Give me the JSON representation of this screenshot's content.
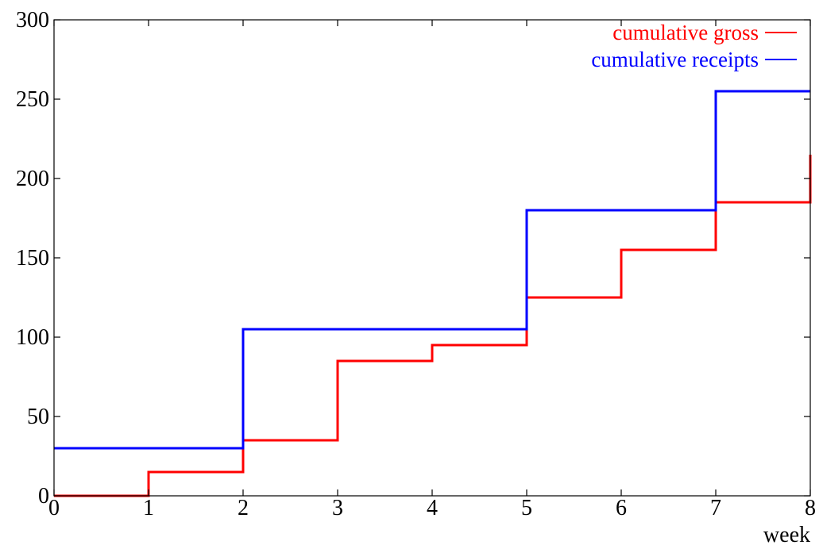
{
  "chart_data": {
    "type": "line",
    "style": "step",
    "title": "",
    "xlabel": "week",
    "ylabel": "",
    "xlim": [
      0,
      8
    ],
    "ylim": [
      0,
      300
    ],
    "xticks": [
      "0",
      "1",
      "2",
      "3",
      "4",
      "5",
      "6",
      "7",
      "8"
    ],
    "yticks": [
      "0",
      "50",
      "100",
      "150",
      "200",
      "250",
      "300"
    ],
    "grid": false,
    "legend": "top-right",
    "series": [
      {
        "name": "cumulative gross",
        "color": "#ff0000",
        "points": [
          [
            0,
            0
          ],
          [
            1,
            0
          ],
          [
            1,
            15
          ],
          [
            2,
            15
          ],
          [
            2,
            35
          ],
          [
            3,
            35
          ],
          [
            3,
            85
          ],
          [
            4,
            85
          ],
          [
            4,
            95
          ],
          [
            5,
            95
          ],
          [
            5,
            125
          ],
          [
            6,
            125
          ],
          [
            6,
            155
          ],
          [
            7,
            155
          ],
          [
            7,
            185
          ],
          [
            8,
            185
          ],
          [
            8,
            215
          ]
        ]
      },
      {
        "name": "cumulative receipts",
        "color": "#0000ff",
        "points": [
          [
            0,
            30
          ],
          [
            2,
            30
          ],
          [
            2,
            105
          ],
          [
            5,
            105
          ],
          [
            5,
            180
          ],
          [
            7,
            180
          ],
          [
            7,
            255
          ],
          [
            8,
            255
          ]
        ]
      }
    ]
  }
}
